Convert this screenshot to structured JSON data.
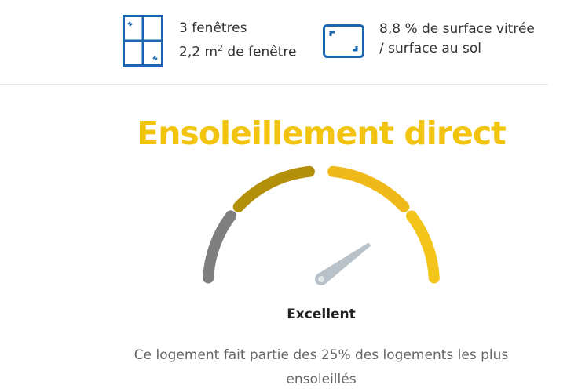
{
  "stats": {
    "windows": {
      "icon": "window-icon",
      "line1": "3 fenêtres",
      "line2_value": "2,2 m",
      "line2_sup": "2",
      "line2_rest": " de fenêtre"
    },
    "glazing": {
      "icon": "glazed-surface-icon",
      "line1": "8,8 % de surface vitrée",
      "line2": "/ surface au sol"
    }
  },
  "title": "Ensoleillement direct",
  "gauge": {
    "segments": [
      {
        "color": "#7f7f7f"
      },
      {
        "color": "#b38f0a"
      },
      {
        "color": "#f0b91a"
      },
      {
        "color": "#f3c51a"
      }
    ],
    "needle_color": "#b9c2c8",
    "level": "Excellent"
  },
  "rating": "Excellent",
  "description": "Ce logement fait partie des 25% des logements les plus ensoleillés"
}
